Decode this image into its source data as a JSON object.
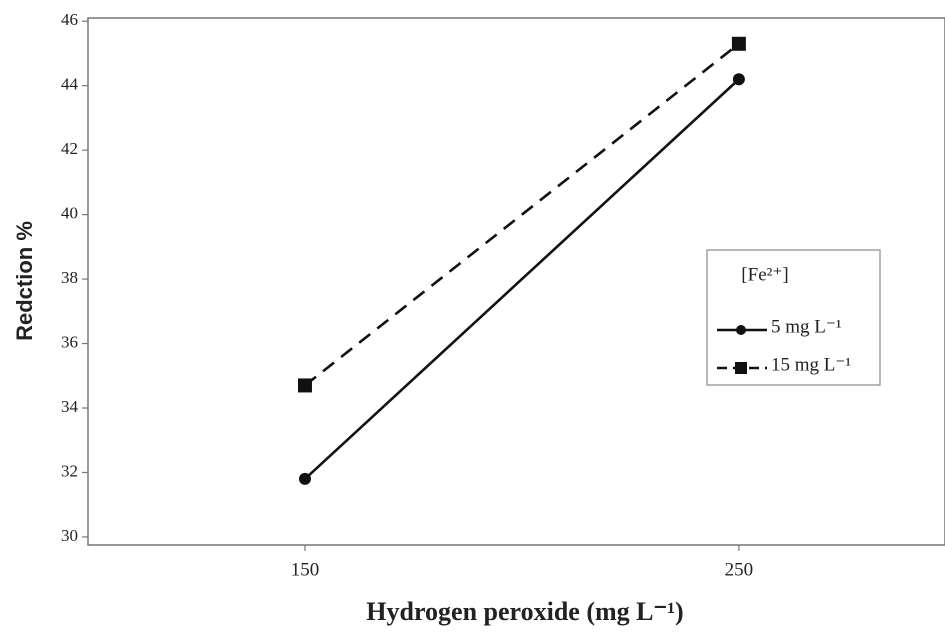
{
  "chart_data": {
    "type": "line",
    "x_label": "Hydrogen peroxide (mg L⁻¹)",
    "y_label": "Redction %",
    "x": [
      150,
      250
    ],
    "xlim": [
      100,
      297.5
    ],
    "xticks": [
      150,
      250
    ],
    "ylim": [
      29.75,
      46.1
    ],
    "yticks": [
      30,
      32,
      34,
      36,
      38,
      40,
      42,
      44,
      46
    ],
    "legend_title": "[Fe²⁺]",
    "legend_position": "right",
    "series": [
      {
        "name": "5 mg L⁻¹",
        "color": "#111111",
        "dash": "solid",
        "marker": "circle",
        "values": [
          31.8,
          44.2
        ]
      },
      {
        "name": "15 mg L⁻¹",
        "color": "#111111",
        "dash": "dashed",
        "marker": "square",
        "values": [
          34.7,
          45.3
        ]
      }
    ]
  }
}
